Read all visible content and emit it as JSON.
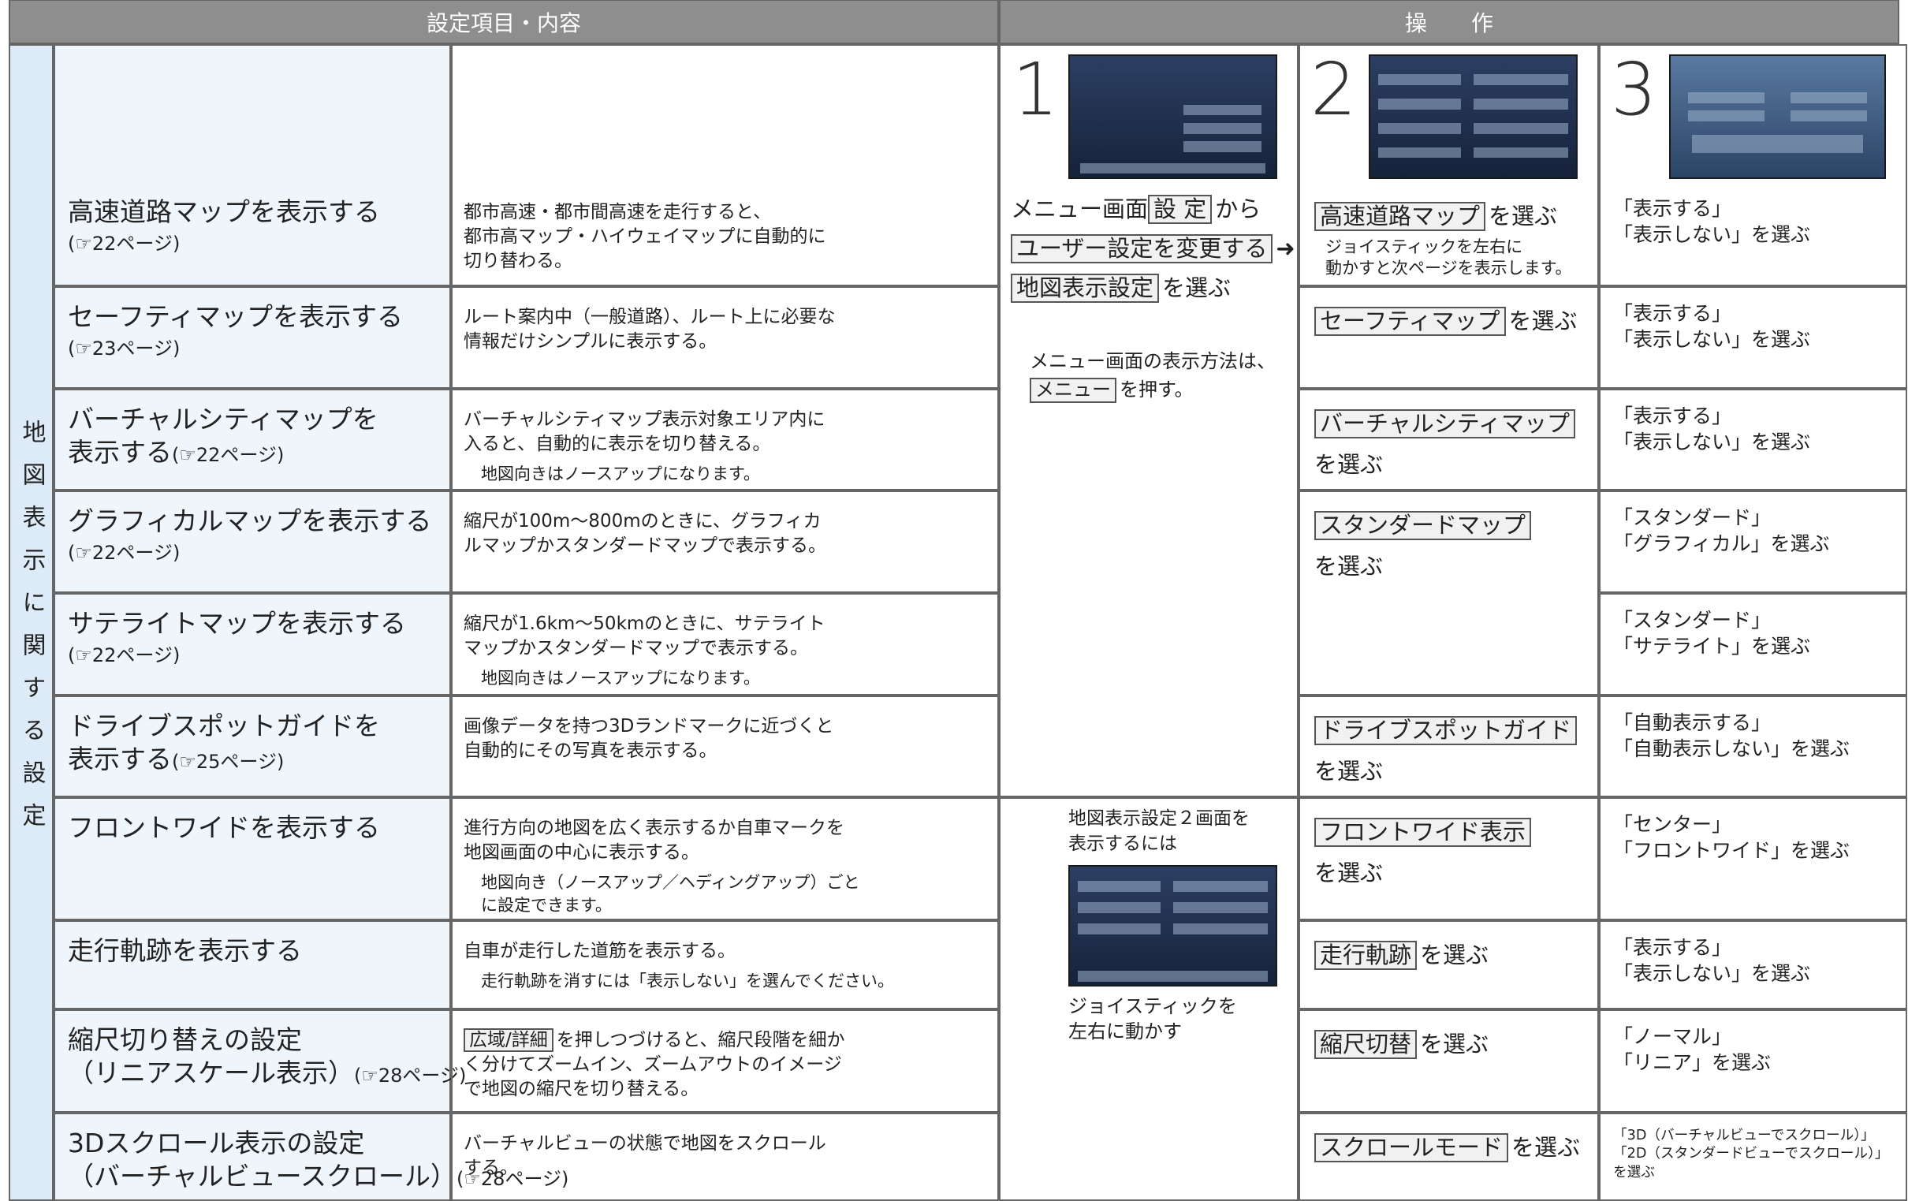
{
  "header": {
    "settings": "設定項目・内容",
    "operation": "操　　作"
  },
  "category": "地図表示に関する設定",
  "rows": [
    {
      "item": [
        "高速道路マップを表示する"
      ],
      "ref": "(☞22ページ)",
      "content": [
        "都市高速・都市間高速を走行すると、",
        "都市高マップ・ハイウェイマップに自動的に",
        "切り替わる。"
      ],
      "note": null,
      "step2": {
        "button": "高速道路マップ",
        "suffix": "を選ぶ",
        "note": [
          "ジョイスティックを左右に",
          "動かすと次ページを表示します。"
        ]
      },
      "step3": [
        "「表示する」",
        "「表示しない」を選ぶ"
      ]
    },
    {
      "item": [
        "セーフティマップを表示する"
      ],
      "ref": "(☞23ページ)",
      "content": [
        "ルート案内中（一般道路）、ルート上に必要な",
        "情報だけシンプルに表示する。"
      ],
      "note": null,
      "step2": {
        "button": "セーフティマップ",
        "suffix": "を選ぶ",
        "note": null
      },
      "step3": [
        "「表示する」",
        "「表示しない」を選ぶ"
      ]
    },
    {
      "item": [
        "バーチャルシティマップを",
        "表示する"
      ],
      "ref": "(☞22ページ)",
      "content": [
        "バーチャルシティマップ表示対象エリア内に",
        "入ると、自動的に表示を切り替える。"
      ],
      "note": [
        "地図向きはノースアップになります。"
      ],
      "step2": {
        "button": "バーチャルシティマップ",
        "suffix": "を選ぶ",
        "note": null
      },
      "step3": [
        "「表示する」",
        "「表示しない」を選ぶ"
      ]
    },
    {
      "item": [
        "グラフィカルマップを表示する"
      ],
      "ref": "(☞22ページ)",
      "content": [
        "縮尺が100m～800mのときに、グラフィカ",
        "ルマップかスタンダードマップで表示する。"
      ],
      "note": null,
      "step2": {
        "button": "スタンダードマップ",
        "suffix": "を選ぶ",
        "note": null
      },
      "step3": [
        "「スタンダード」",
        "「グラフィカル」を選ぶ"
      ]
    },
    {
      "item": [
        "サテライトマップを表示する"
      ],
      "ref": "(☞22ページ)",
      "content": [
        "縮尺が1.6km～50kmのときに、サテライト",
        "マップかスタンダードマップで表示する。"
      ],
      "note": [
        "地図向きはノースアップになります。"
      ],
      "step2": null,
      "step3": [
        "「スタンダード」",
        "「サテライト」を選ぶ"
      ]
    },
    {
      "item": [
        "ドライブスポットガイドを",
        "表示する"
      ],
      "ref": "(☞25ページ)",
      "content": [
        "画像データを持つ3Dランドマークに近づくと",
        "自動的にその写真を表示する。"
      ],
      "note": null,
      "step2": {
        "button": "ドライブスポットガイド",
        "suffix": "を選ぶ",
        "note": null
      },
      "step3": [
        "「自動表示する」",
        "「自動表示しない」を選ぶ"
      ]
    },
    {
      "item": [
        "フロントワイドを表示する"
      ],
      "ref": null,
      "content": [
        "進行方向の地図を広く表示するか自車マークを",
        "地図画面の中心に表示する。"
      ],
      "note": [
        "地図向き（ノースアップ／ヘディングアップ）ごと",
        "に設定できます。"
      ],
      "step2": {
        "button": "フロントワイド表示",
        "suffix": "を選ぶ",
        "note": null
      },
      "step3": [
        "「センター」",
        "「フロントワイド」を選ぶ"
      ]
    },
    {
      "item": [
        "走行軌跡を表示する"
      ],
      "ref": null,
      "content": [
        "自車が走行した道筋を表示する。"
      ],
      "note": [
        "走行軌跡を消すには「表示しない」を選んでください。"
      ],
      "step2": {
        "button": "走行軌跡",
        "suffix": "を選ぶ",
        "note": null
      },
      "step3": [
        "「表示する」",
        "「表示しない」を選ぶ"
      ]
    },
    {
      "item": [
        "縮尺切り替えの設定",
        "（リニアスケール表示）"
      ],
      "ref": "(☞28ページ)",
      "content": [
        [
          {
            "button": "広域/詳細"
          },
          "を押しつづけると、縮尺段階を細か"
        ],
        "く分けてズームイン、ズームアウトのイメージ",
        "で地図の縮尺を切り替える。"
      ],
      "note": null,
      "step2": {
        "button": "縮尺切替",
        "suffix": "を選ぶ",
        "note": null
      },
      "step3": [
        "「ノーマル」",
        "「リニア」を選ぶ"
      ]
    },
    {
      "item": [
        "3Dスクロール表示の設定",
        "（バーチャルビュースクロール）"
      ],
      "ref": "(☞28ページ)",
      "content": [
        "バーチャルビューの状態で地図をスクロール",
        "する。"
      ],
      "note": null,
      "step2": {
        "button": "スクロールモード",
        "suffix": "を選ぶ",
        "note": null
      },
      "step3": [
        "「3D（バーチャルビューでスクロール）」",
        "「2D（スタンダードビューでスクロール）」",
        "を選ぶ"
      ]
    }
  ],
  "operation": {
    "steps": [
      {
        "number": "1"
      },
      {
        "number": "2"
      },
      {
        "number": "3"
      }
    ],
    "step1_top": {
      "instruction": [
        [
          "メニュー画面",
          {
            "button": "設 定"
          },
          "から"
        ],
        [
          {
            "button": "ユーザー設定を変更する"
          },
          "➜"
        ],
        [
          {
            "button": "地図表示設定"
          },
          "を選ぶ"
        ]
      ],
      "note": [
        [
          "メニュー画面の表示方法は、"
        ],
        [
          {
            "button": "メニュー"
          },
          "を押す。"
        ]
      ]
    },
    "step1_bottom": {
      "intro": [
        "地図表示設定２画面を",
        "表示するには"
      ],
      "after": [
        "ジョイスティックを",
        "左右に動かす"
      ]
    }
  }
}
